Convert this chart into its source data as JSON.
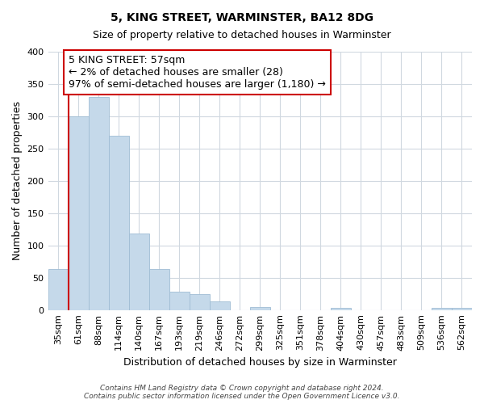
{
  "title": "5, KING STREET, WARMINSTER, BA12 8DG",
  "subtitle": "Size of property relative to detached houses in Warminster",
  "xlabel": "Distribution of detached houses by size in Warminster",
  "ylabel": "Number of detached properties",
  "bar_labels": [
    "35sqm",
    "61sqm",
    "88sqm",
    "114sqm",
    "140sqm",
    "167sqm",
    "193sqm",
    "219sqm",
    "246sqm",
    "272sqm",
    "299sqm",
    "325sqm",
    "351sqm",
    "378sqm",
    "404sqm",
    "430sqm",
    "457sqm",
    "483sqm",
    "509sqm",
    "536sqm",
    "562sqm"
  ],
  "bar_values": [
    63,
    300,
    330,
    270,
    119,
    64,
    29,
    25,
    13,
    0,
    4,
    0,
    0,
    0,
    3,
    0,
    0,
    0,
    0,
    3,
    3
  ],
  "bar_color": "#c5d9ea",
  "bar_edge_color": "#a0bdd4",
  "marker_line_color": "#cc0000",
  "annotation_text_line1": "5 KING STREET: 57sqm",
  "annotation_text_line2": "← 2% of detached houses are smaller (28)",
  "annotation_text_line3": "97% of semi-detached houses are larger (1,180) →",
  "annotation_box_facecolor": "#ffffff",
  "annotation_box_edgecolor": "#cc0000",
  "ylim": [
    0,
    400
  ],
  "yticks": [
    0,
    50,
    100,
    150,
    200,
    250,
    300,
    350,
    400
  ],
  "footnote_line1": "Contains HM Land Registry data © Crown copyright and database right 2024.",
  "footnote_line2": "Contains public sector information licensed under the Open Government Licence v3.0.",
  "background_color": "#ffffff",
  "grid_color": "#d0d8e0",
  "title_fontsize": 10,
  "subtitle_fontsize": 9,
  "ylabel_fontsize": 9,
  "xlabel_fontsize": 9,
  "tick_fontsize": 8,
  "annotation_fontsize": 9,
  "footnote_fontsize": 6.5
}
